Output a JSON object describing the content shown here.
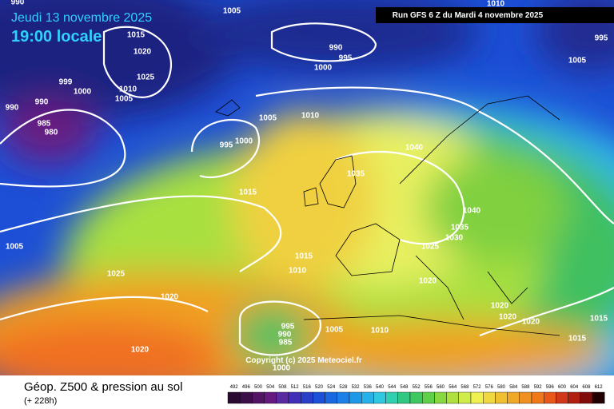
{
  "header": {
    "date": "Jeudi 13 novembre 2025",
    "time": "19:00 locale",
    "run": "Run GFS 6 Z du Mardi 4 novembre 2025"
  },
  "copyright": "Copyright (c) 2025 Meteociel.fr",
  "legend": {
    "title": "Géop. Z500 & pression au sol",
    "lead_time": "(+ 228h)",
    "scale": [
      492,
      496,
      500,
      504,
      508,
      512,
      516,
      520,
      524,
      528,
      532,
      536,
      540,
      544,
      548,
      552,
      556,
      560,
      564,
      568,
      572,
      576,
      580,
      584,
      588,
      592,
      596,
      600,
      604,
      608,
      612
    ]
  },
  "isobars": [
    990,
    1005,
    1010,
    1015,
    1020,
    1025,
    1010,
    1005,
    999,
    1000,
    990,
    990,
    985,
    980,
    990,
    995,
    1000,
    995,
    1005,
    1005,
    1010,
    995,
    1000,
    1040,
    1035,
    1015,
    1040,
    1035,
    1030,
    1025,
    1005,
    1015,
    1010,
    1025,
    1020,
    1020,
    1020,
    1020,
    1020,
    1015,
    995,
    990,
    985,
    1005,
    1010,
    1015,
    1020,
    1000
  ]
}
